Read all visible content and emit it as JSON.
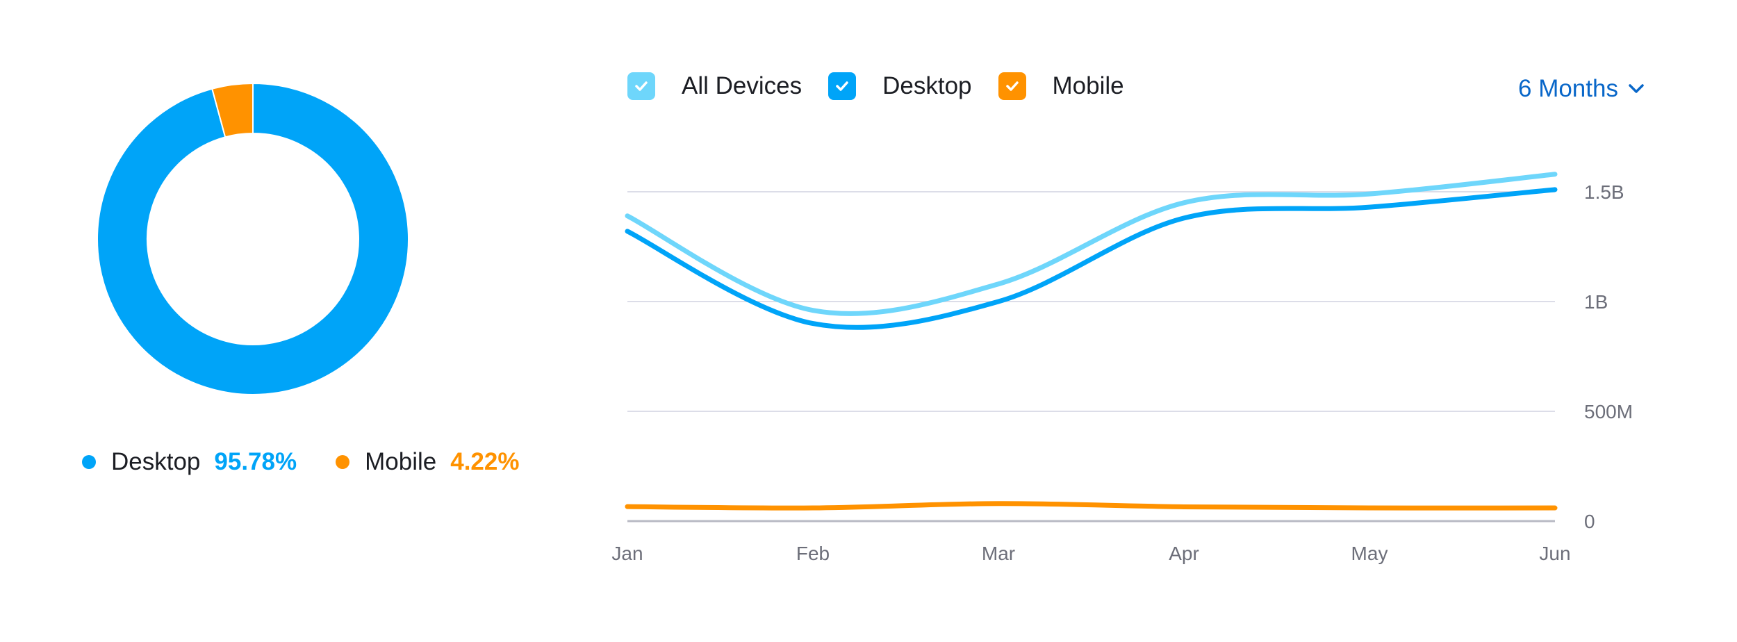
{
  "donut": {
    "segments": [
      {
        "name": "Desktop",
        "value": 95.78,
        "color": "#00a4f8"
      },
      {
        "name": "Mobile",
        "value": 4.22,
        "color": "#ff9200"
      }
    ]
  },
  "legend_bottom": {
    "desktop_label": "Desktop",
    "desktop_pct": "95.78%",
    "mobile_label": "Mobile",
    "mobile_pct": "4.22%"
  },
  "series_toggles": [
    {
      "label": "All Devices",
      "color": "#6ed6fb",
      "checked": true
    },
    {
      "label": "Desktop",
      "color": "#00a4f8",
      "checked": true
    },
    {
      "label": "Mobile",
      "color": "#ff9200",
      "checked": true
    }
  ],
  "period_selector": {
    "label": "6 Months"
  },
  "chart_data": [
    {
      "type": "pie",
      "categories": [
        "Desktop",
        "Mobile"
      ],
      "values": [
        95.78,
        4.22
      ],
      "unit": "%"
    },
    {
      "type": "line",
      "categories": [
        "Jan",
        "Feb",
        "Mar",
        "Apr",
        "May",
        "Jun"
      ],
      "series": [
        {
          "name": "All Devices",
          "color": "#6ed6fb",
          "values": [
            1.39,
            0.96,
            1.08,
            1.45,
            1.49,
            1.58
          ]
        },
        {
          "name": "Desktop",
          "color": "#00a4f8",
          "values": [
            1.32,
            0.9,
            1.0,
            1.38,
            1.43,
            1.51
          ]
        },
        {
          "name": "Mobile",
          "color": "#ff9200",
          "values": [
            0.066,
            0.06,
            0.08,
            0.065,
            0.06,
            0.06
          ]
        }
      ],
      "y_unit": "B visits",
      "ylim": [
        0,
        1.5
      ],
      "yticks": [
        0,
        0.5,
        1.0,
        1.5
      ],
      "ytick_labels": [
        "0",
        "500M",
        "1B",
        "1.5B"
      ],
      "grid": true,
      "y_axis_position": "right"
    }
  ]
}
